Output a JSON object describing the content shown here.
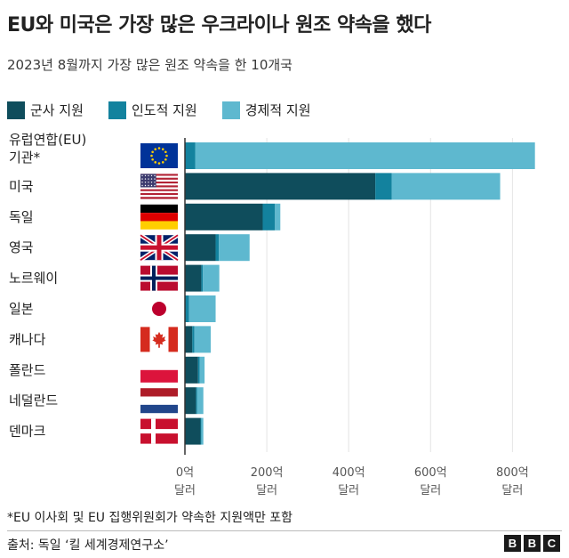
{
  "header": {
    "title": "EU와 미국은 가장 많은 우크라이나 원조 약속을 했다",
    "subtitle": "2023년 8월까지 가장 많은 원조 약속을 한 10개국"
  },
  "footer": {
    "footnote": "*EU 이사회 및 EU 집행위원회가 약속한 지원액만 포함",
    "source": "출처: 독일 ‘킬 세계경제연구소’",
    "logo_letters": [
      "B",
      "B",
      "C"
    ]
  },
  "colors": {
    "military": "#0f4d5c",
    "humanitarian": "#13829e",
    "financial": "#5eb8cf",
    "axis": "#333333",
    "grid": "#e4e4e4"
  },
  "chart_data": {
    "type": "bar",
    "orientation": "horizontal",
    "stacked": true,
    "title": "EU와 미국은 가장 많은 우크라이나 원조 약속을 했다",
    "subtitle": "2023년 8월까지 가장 많은 원조 약속을 한 10개국",
    "categories": [
      {
        "label": [
          "유럽연합(EU)",
          "기관*"
        ],
        "flag": "eu-flag-icon"
      },
      {
        "label": [
          "미국"
        ],
        "flag": "us-flag-icon"
      },
      {
        "label": [
          "독일"
        ],
        "flag": "germany-flag-icon"
      },
      {
        "label": [
          "영국"
        ],
        "flag": "uk-flag-icon"
      },
      {
        "label": [
          "노르웨이"
        ],
        "flag": "norway-flag-icon"
      },
      {
        "label": [
          "일본"
        ],
        "flag": "japan-flag-icon"
      },
      {
        "label": [
          "캐나다"
        ],
        "flag": "canada-flag-icon"
      },
      {
        "label": [
          "폴란드"
        ],
        "flag": "poland-flag-icon"
      },
      {
        "label": [
          "네덜란드"
        ],
        "flag": "netherlands-flag-icon"
      },
      {
        "label": [
          "덴마크"
        ],
        "flag": "denmark-flag-icon"
      }
    ],
    "series": [
      {
        "name": "군사 지원",
        "color": "#0f4d5c",
        "values": [
          0,
          465,
          190,
          75,
          40,
          0,
          18,
          32,
          27,
          38
        ]
      },
      {
        "name": "인도적 지원",
        "color": "#13829e",
        "values": [
          25,
          40,
          30,
          8,
          4,
          10,
          5,
          4,
          3,
          2
        ]
      },
      {
        "name": "경제적 지원",
        "color": "#5eb8cf",
        "values": [
          830,
          265,
          13,
          75,
          40,
          65,
          40,
          12,
          15,
          5
        ]
      }
    ],
    "x_ticks": [
      {
        "value": 0,
        "label": [
          "0억",
          "달러"
        ]
      },
      {
        "value": 200,
        "label": [
          "200억",
          "달러"
        ]
      },
      {
        "value": 400,
        "label": [
          "400억",
          "달러"
        ]
      },
      {
        "value": 600,
        "label": [
          "600억",
          "달러"
        ]
      },
      {
        "value": 800,
        "label": [
          "800억",
          "달러"
        ]
      }
    ],
    "xlim": [
      0,
      860
    ],
    "grid": true,
    "legend_position": "top-left"
  }
}
